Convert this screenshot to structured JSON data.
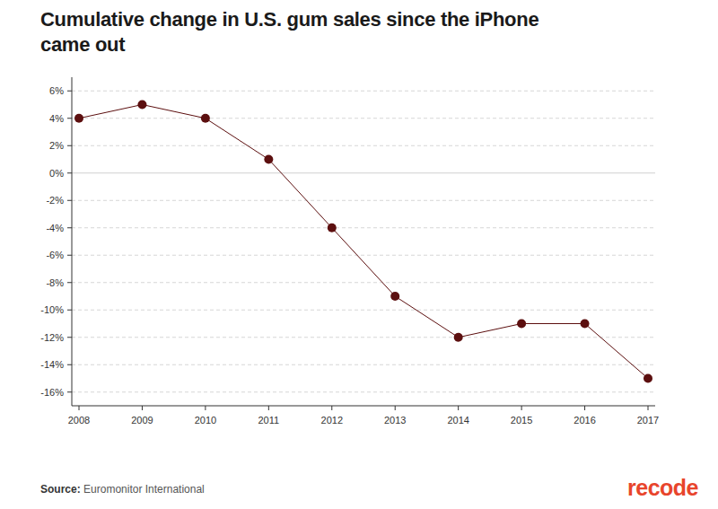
{
  "chart_data": {
    "type": "line",
    "title": "Cumulative change in U.S. gum sales since the iPhone came out",
    "x": [
      2008,
      2009,
      2010,
      2011,
      2012,
      2013,
      2014,
      2015,
      2016,
      2017
    ],
    "values": [
      4,
      5,
      4,
      1,
      -4,
      -9,
      -12,
      -11,
      -11,
      -15
    ],
    "color": "#5c0f0f",
    "marker": "circle",
    "xlim": [
      2008,
      2017
    ],
    "xticks": [
      2008,
      2009,
      2010,
      2011,
      2012,
      2013,
      2014,
      2015,
      2016,
      2017
    ],
    "ylim": [
      -17,
      7
    ],
    "yticks": [
      {
        "value": -16,
        "label": "-16%"
      },
      {
        "value": -14,
        "label": "-14%"
      },
      {
        "value": -12,
        "label": "-12%"
      },
      {
        "value": -10,
        "label": "-10%"
      },
      {
        "value": -8,
        "label": "-8%"
      },
      {
        "value": -6,
        "label": "-6%"
      },
      {
        "value": -4,
        "label": "-4%"
      },
      {
        "value": -2,
        "label": "-2%"
      },
      {
        "value": 0,
        "label": "0%"
      },
      {
        "value": 2,
        "label": "2%"
      },
      {
        "value": 4,
        "label": "4%"
      },
      {
        "value": 6,
        "label": "6%"
      }
    ],
    "grid": true,
    "source_label": "Source:",
    "source": "Euromonitor International",
    "logo": "recode"
  }
}
